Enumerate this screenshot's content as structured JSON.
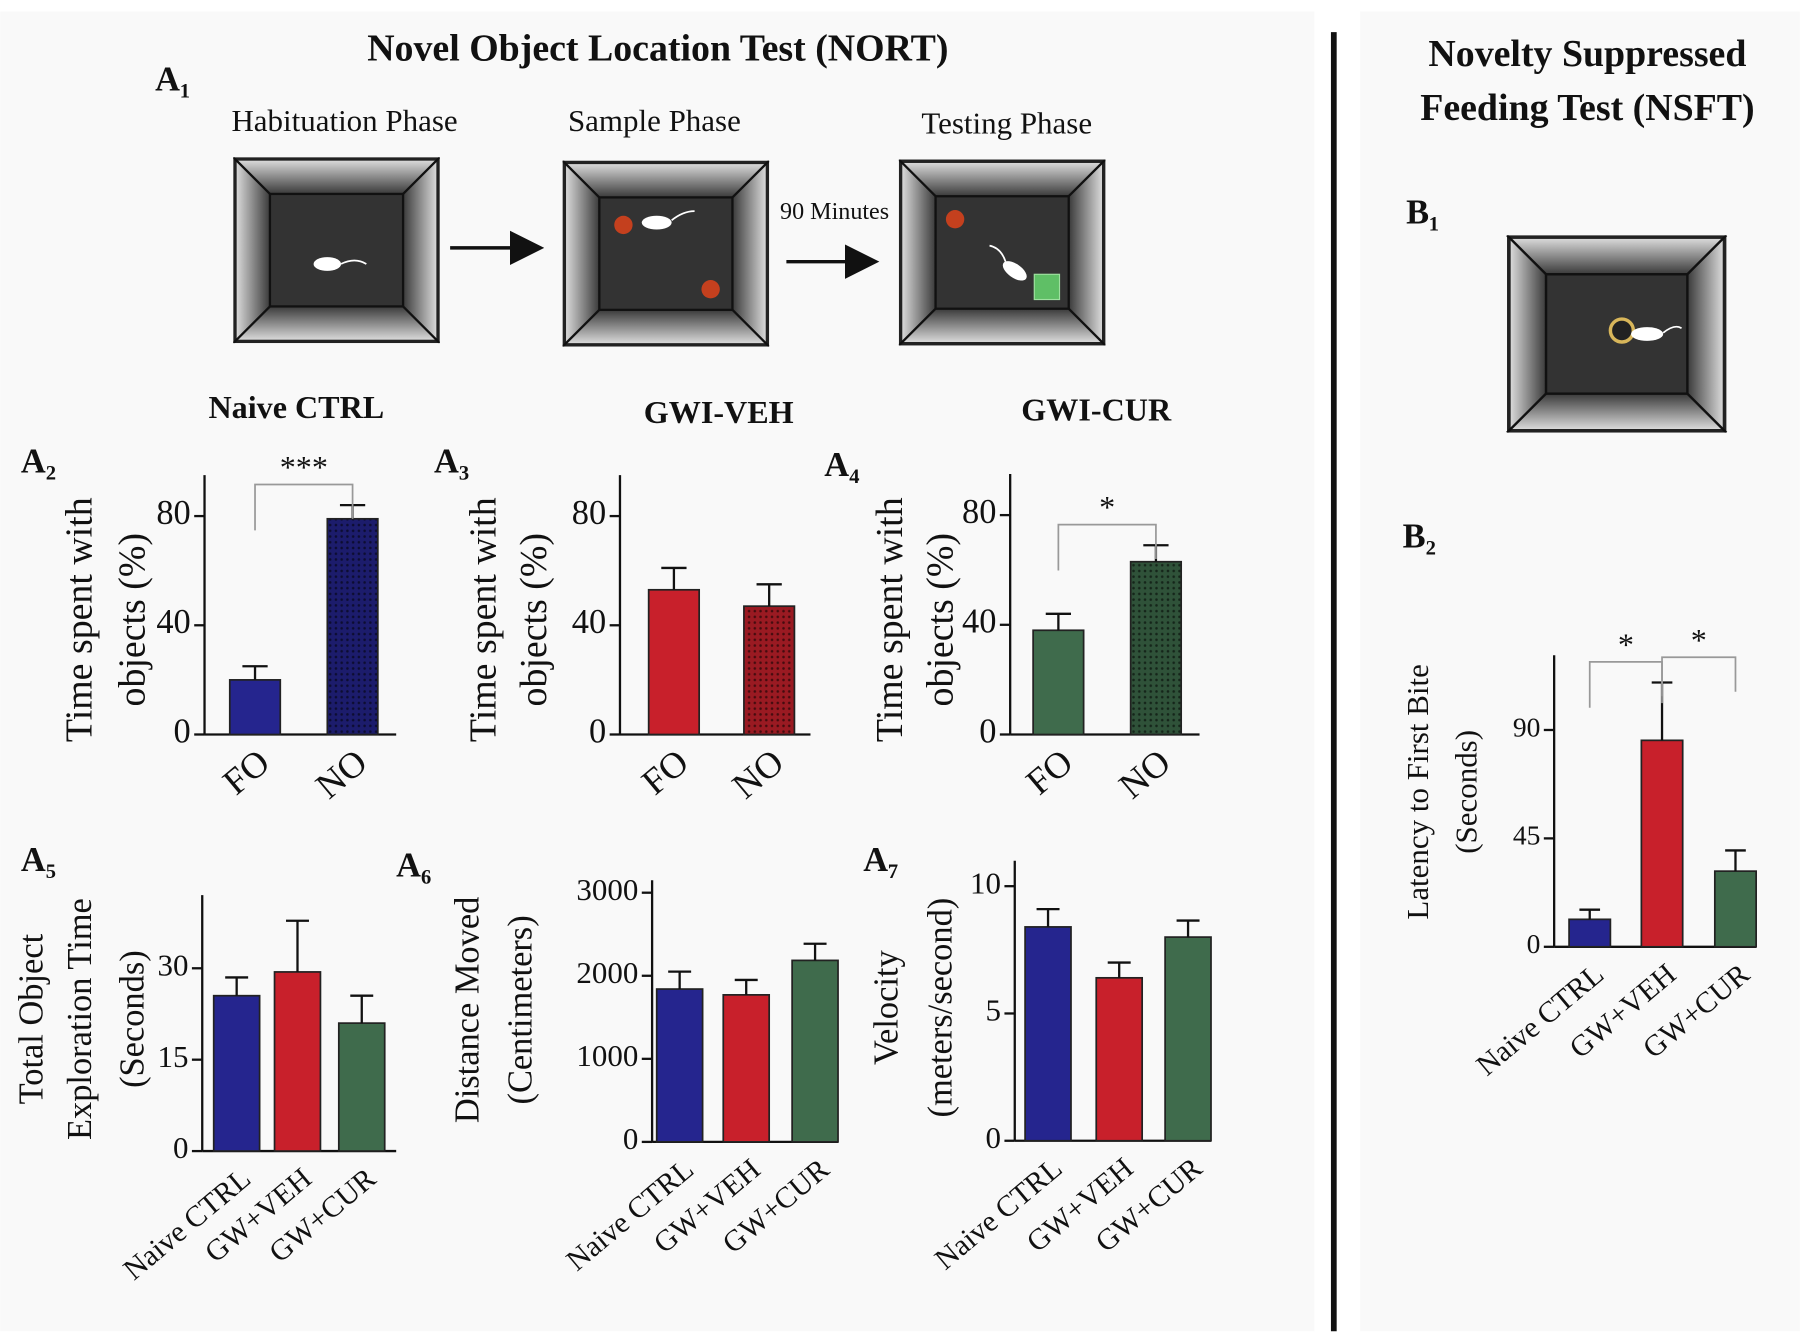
{
  "nort_title": "Novel Object Location Test (NORT)",
  "nsft_title": [
    "Novelty Suppressed",
    "Feeding Test  (NSFT)"
  ],
  "diagram": {
    "panel": "A₁",
    "phases": [
      "Habituation Phase",
      "Sample Phase",
      "Testing Phase"
    ],
    "interval": "90 Minutes"
  },
  "nsft_diagram": {
    "panel": "B₁"
  },
  "chart_data": [
    {
      "type": "bar",
      "panel": "A₂",
      "title": "Naive CTRL",
      "ylabel": [
        "Time spent with",
        "objects (%)"
      ],
      "categories": [
        "FO",
        "NO"
      ],
      "values": [
        20,
        79
      ],
      "errors": [
        5,
        5
      ],
      "colors": [
        "#25258e",
        "#1c1c6c"
      ],
      "patterns": [
        false,
        true
      ],
      "ylim": [
        0,
        95
      ],
      "yticks": [
        0,
        40,
        80
      ],
      "significance": [
        {
          "pair": [
            0,
            1
          ],
          "label": "***"
        }
      ]
    },
    {
      "type": "bar",
      "panel": "A₃",
      "title": "GWI-VEH",
      "ylabel": [
        "Time spent with",
        "objects (%)"
      ],
      "categories": [
        "FO",
        "NO"
      ],
      "values": [
        53,
        47
      ],
      "errors": [
        8,
        8
      ],
      "colors": [
        "#c8202b",
        "#9a1a22"
      ],
      "patterns": [
        false,
        true
      ],
      "ylim": [
        0,
        95
      ],
      "yticks": [
        0,
        40,
        80
      ],
      "significance": []
    },
    {
      "type": "bar",
      "panel": "A₄",
      "title": "GWI-CUR",
      "ylabel": [
        "Time spent with",
        "objects (%)"
      ],
      "categories": [
        "FO",
        "NO"
      ],
      "values": [
        38,
        63
      ],
      "errors": [
        6,
        6
      ],
      "colors": [
        "#3f6b4c",
        "#2f5239"
      ],
      "patterns": [
        false,
        true
      ],
      "ylim": [
        0,
        95
      ],
      "yticks": [
        0,
        40,
        80
      ],
      "significance": [
        {
          "pair": [
            0,
            1
          ],
          "label": "*"
        }
      ]
    },
    {
      "type": "bar",
      "panel": "A₅",
      "ylabel": [
        "Total Object",
        "Exploration Time",
        "(Seconds)"
      ],
      "categories": [
        "Naive CTRL",
        "GW+VEH",
        "GW+CUR"
      ],
      "values": [
        25.5,
        29.4,
        21
      ],
      "errors": [
        3,
        8.4,
        4.5
      ],
      "colors": [
        "#25258e",
        "#c8202b",
        "#3f6b4c"
      ],
      "patterns": [
        false,
        false,
        false
      ],
      "ylim": [
        0,
        42
      ],
      "yticks": [
        0,
        15,
        30
      ],
      "significance": []
    },
    {
      "type": "bar",
      "panel": "A₆",
      "ylabel": [
        "Distance Moved",
        "(Centimeters)"
      ],
      "categories": [
        "Naive CTRL",
        "GW+VEH",
        "GW+CUR"
      ],
      "values": [
        1840,
        1770,
        2185
      ],
      "errors": [
        210,
        180,
        200
      ],
      "colors": [
        "#25258e",
        "#c8202b",
        "#3f6b4c"
      ],
      "patterns": [
        false,
        false,
        false
      ],
      "ylim": [
        0,
        3150
      ],
      "yticks": [
        0,
        1000,
        2000,
        3000
      ],
      "significance": []
    },
    {
      "type": "bar",
      "panel": "A₇",
      "ylabel": [
        "Velocity",
        "(meters/second)"
      ],
      "categories": [
        "Naive CTRL",
        "GW+VEH",
        "GW+CUR"
      ],
      "values": [
        8.4,
        6.4,
        8.0
      ],
      "errors": [
        0.7,
        0.6,
        0.65
      ],
      "colors": [
        "#25258e",
        "#c8202b",
        "#3f6b4c"
      ],
      "patterns": [
        false,
        false,
        false
      ],
      "ylim": [
        0,
        11
      ],
      "yticks": [
        0,
        5,
        10
      ],
      "significance": []
    },
    {
      "type": "bar",
      "panel": "B₂",
      "ylabel": [
        "Latency to First Bite",
        "(Seconds)"
      ],
      "categories": [
        "Naive CTRL",
        "GW+VEH",
        "GW+CUR"
      ],
      "values": [
        11.4,
        85.7,
        31.4
      ],
      "errors": [
        4,
        24,
        8.6
      ],
      "colors": [
        "#25258e",
        "#c8202b",
        "#3f6b4c"
      ],
      "patterns": [
        false,
        false,
        false
      ],
      "ylim": [
        0,
        121
      ],
      "yticks": [
        0,
        45,
        90
      ],
      "significance": [
        {
          "pair": [
            0,
            1
          ],
          "label": "*"
        },
        {
          "pair": [
            1,
            2
          ],
          "label": "*"
        }
      ]
    }
  ]
}
